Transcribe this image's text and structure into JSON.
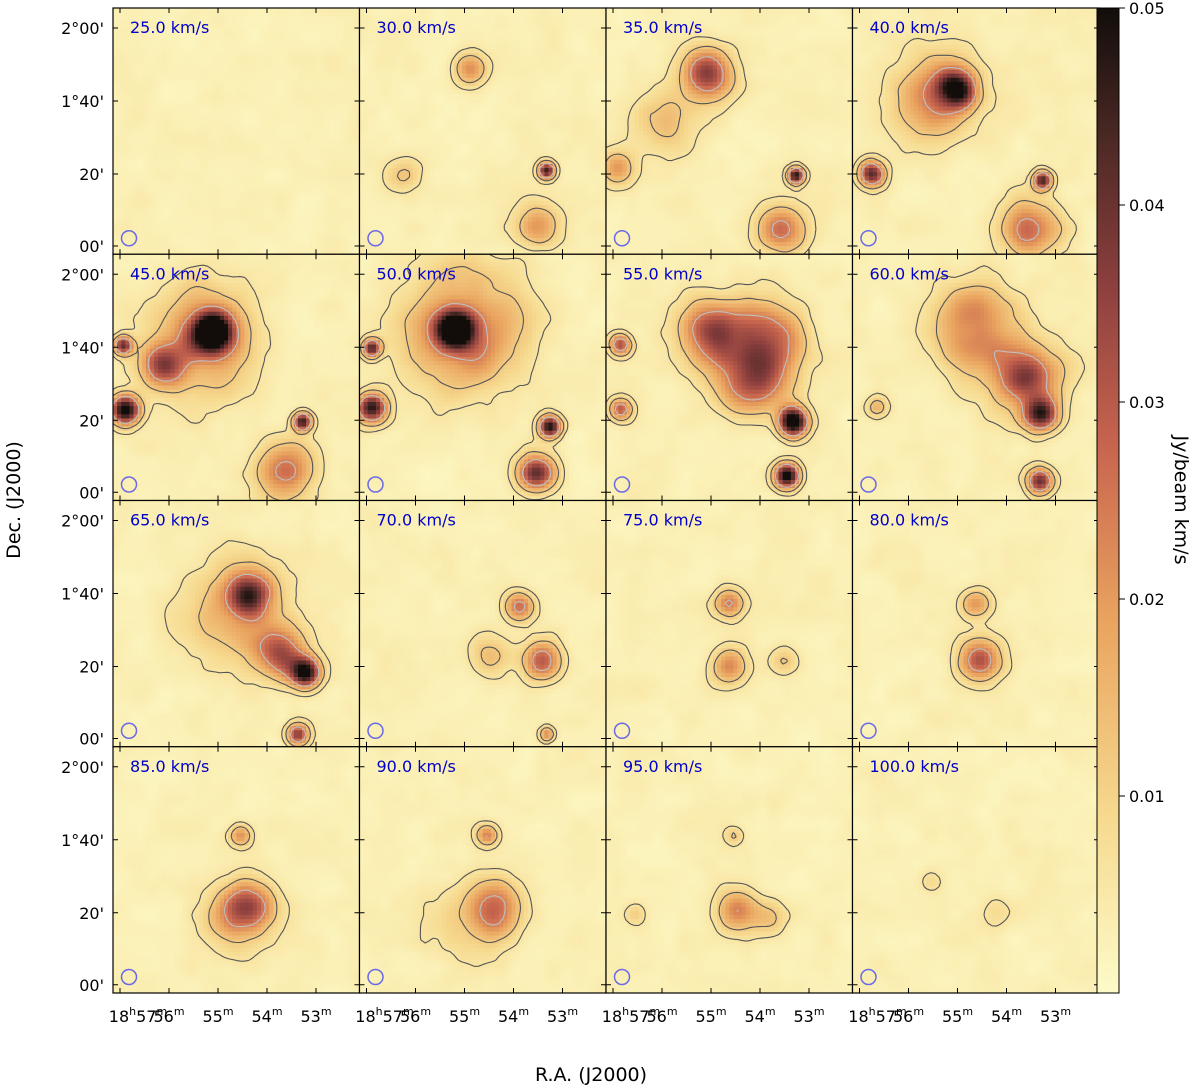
{
  "chart_data": {
    "type": "heatmap",
    "title": "",
    "xlabel": "R.A. (J2000)",
    "ylabel": "Dec. (J2000)",
    "colorbar": {
      "label": "Jy/beam km/s",
      "range": [
        0.0,
        0.05
      ],
      "ticks": [
        "0.01",
        "0.02",
        "0.03",
        "0.04",
        "0.05"
      ],
      "tick_values": [
        0.01,
        0.02,
        0.03,
        0.04,
        0.05
      ],
      "colors": [
        "#fdfbc9",
        "#f6d98e",
        "#e9a35e",
        "#c9664f",
        "#8c3f3e",
        "#4a2824",
        "#120d0a"
      ]
    },
    "grid": {
      "rows": 4,
      "cols": 4
    },
    "y_tick_labels": [
      "2°00'",
      "1°40'",
      "20'",
      "00'"
    ],
    "x_tick_labels": [
      {
        "main": "18",
        "sup": "h",
        "main2": "57",
        "sup2": "m"
      },
      {
        "main": "56",
        "sup": "m"
      },
      {
        "main": "55",
        "sup": "m"
      },
      {
        "main": "54",
        "sup": "m"
      },
      {
        "main": "53",
        "sup": "m"
      }
    ],
    "beam_color": "#6a6ae8",
    "contour_color": "#555555",
    "panels": [
      {
        "label": "25.0 km/s",
        "blobs": []
      },
      {
        "label": "30.0 km/s",
        "blobs": [
          {
            "x": 0.45,
            "y": 0.25,
            "peak": 0.018,
            "sigma": 0.045
          },
          {
            "x": 0.76,
            "y": 0.66,
            "peak": 0.045,
            "sigma": 0.022
          },
          {
            "x": 0.72,
            "y": 0.88,
            "peak": 0.018,
            "sigma": 0.06
          },
          {
            "x": 0.18,
            "y": 0.68,
            "peak": 0.01,
            "sigma": 0.05
          }
        ]
      },
      {
        "label": "35.0 km/s",
        "blobs": [
          {
            "x": 0.41,
            "y": 0.27,
            "peak": 0.028,
            "sigma": 0.07
          },
          {
            "x": 0.77,
            "y": 0.68,
            "peak": 0.05,
            "sigma": 0.022
          },
          {
            "x": 0.72,
            "y": 0.9,
            "peak": 0.022,
            "sigma": 0.07
          },
          {
            "x": 0.04,
            "y": 0.65,
            "peak": 0.015,
            "sigma": 0.05
          },
          {
            "x": 0.25,
            "y": 0.45,
            "peak": 0.01,
            "sigma": 0.09
          }
        ]
      },
      {
        "label": "40.0 km/s",
        "blobs": [
          {
            "x": 0.42,
            "y": 0.33,
            "peak": 0.045,
            "sigma": 0.05
          },
          {
            "x": 0.35,
            "y": 0.35,
            "peak": 0.02,
            "sigma": 0.12
          },
          {
            "x": 0.08,
            "y": 0.67,
            "peak": 0.04,
            "sigma": 0.035
          },
          {
            "x": 0.77,
            "y": 0.7,
            "peak": 0.05,
            "sigma": 0.025
          },
          {
            "x": 0.73,
            "y": 0.9,
            "peak": 0.025,
            "sigma": 0.08
          }
        ]
      },
      {
        "label": "45.0 km/s",
        "blobs": [
          {
            "x": 0.41,
            "y": 0.31,
            "peak": 0.05,
            "sigma": 0.05
          },
          {
            "x": 0.35,
            "y": 0.35,
            "peak": 0.025,
            "sigma": 0.14
          },
          {
            "x": 0.05,
            "y": 0.63,
            "peak": 0.05,
            "sigma": 0.04
          },
          {
            "x": 0.04,
            "y": 0.37,
            "peak": 0.04,
            "sigma": 0.025
          },
          {
            "x": 0.77,
            "y": 0.68,
            "peak": 0.05,
            "sigma": 0.025
          },
          {
            "x": 0.7,
            "y": 0.88,
            "peak": 0.025,
            "sigma": 0.08
          },
          {
            "x": 0.2,
            "y": 0.45,
            "peak": 0.02,
            "sigma": 0.06
          }
        ]
      },
      {
        "label": "50.0 km/s",
        "blobs": [
          {
            "x": 0.39,
            "y": 0.31,
            "peak": 0.05,
            "sigma": 0.05
          },
          {
            "x": 0.42,
            "y": 0.3,
            "peak": 0.025,
            "sigma": 0.16
          },
          {
            "x": 0.05,
            "y": 0.63,
            "peak": 0.05,
            "sigma": 0.04
          },
          {
            "x": 0.05,
            "y": 0.38,
            "peak": 0.04,
            "sigma": 0.025
          },
          {
            "x": 0.77,
            "y": 0.7,
            "peak": 0.05,
            "sigma": 0.03
          },
          {
            "x": 0.72,
            "y": 0.88,
            "peak": 0.035,
            "sigma": 0.05
          }
        ]
      },
      {
        "label": "55.0 km/s",
        "blobs": [
          {
            "x": 0.43,
            "y": 0.33,
            "peak": 0.03,
            "sigma": 0.09
          },
          {
            "x": 0.65,
            "y": 0.35,
            "peak": 0.03,
            "sigma": 0.1
          },
          {
            "x": 0.6,
            "y": 0.52,
            "peak": 0.03,
            "sigma": 0.09
          },
          {
            "x": 0.76,
            "y": 0.68,
            "peak": 0.05,
            "sigma": 0.04
          },
          {
            "x": 0.73,
            "y": 0.9,
            "peak": 0.05,
            "sigma": 0.035
          },
          {
            "x": 0.06,
            "y": 0.37,
            "peak": 0.03,
            "sigma": 0.03
          },
          {
            "x": 0.06,
            "y": 0.63,
            "peak": 0.025,
            "sigma": 0.03
          }
        ]
      },
      {
        "label": "60.0 km/s",
        "blobs": [
          {
            "x": 0.5,
            "y": 0.3,
            "peak": 0.025,
            "sigma": 0.11
          },
          {
            "x": 0.7,
            "y": 0.5,
            "peak": 0.03,
            "sigma": 0.1
          },
          {
            "x": 0.76,
            "y": 0.65,
            "peak": 0.05,
            "sigma": 0.045
          },
          {
            "x": 0.76,
            "y": 0.92,
            "peak": 0.045,
            "sigma": 0.035
          },
          {
            "x": 0.1,
            "y": 0.62,
            "peak": 0.015,
            "sigma": 0.03
          }
        ]
      },
      {
        "label": "65.0 km/s",
        "blobs": [
          {
            "x": 0.55,
            "y": 0.38,
            "peak": 0.03,
            "sigma": 0.06
          },
          {
            "x": 0.78,
            "y": 0.7,
            "peak": 0.05,
            "sigma": 0.04
          },
          {
            "x": 0.68,
            "y": 0.62,
            "peak": 0.03,
            "sigma": 0.07
          },
          {
            "x": 0.5,
            "y": 0.45,
            "peak": 0.015,
            "sigma": 0.14
          },
          {
            "x": 0.75,
            "y": 0.95,
            "peak": 0.03,
            "sigma": 0.03
          }
        ]
      },
      {
        "label": "70.0 km/s",
        "blobs": [
          {
            "x": 0.65,
            "y": 0.43,
            "peak": 0.025,
            "sigma": 0.04
          },
          {
            "x": 0.74,
            "y": 0.65,
            "peak": 0.035,
            "sigma": 0.05
          },
          {
            "x": 0.53,
            "y": 0.63,
            "peak": 0.012,
            "sigma": 0.06
          },
          {
            "x": 0.76,
            "y": 0.95,
            "peak": 0.02,
            "sigma": 0.02
          }
        ]
      },
      {
        "label": "75.0 km/s",
        "blobs": [
          {
            "x": 0.5,
            "y": 0.42,
            "peak": 0.02,
            "sigma": 0.04
          },
          {
            "x": 0.5,
            "y": 0.67,
            "peak": 0.02,
            "sigma": 0.05
          },
          {
            "x": 0.72,
            "y": 0.65,
            "peak": 0.01,
            "sigma": 0.04
          }
        ]
      },
      {
        "label": "80.0 km/s",
        "blobs": [
          {
            "x": 0.5,
            "y": 0.42,
            "peak": 0.022,
            "sigma": 0.04
          },
          {
            "x": 0.52,
            "y": 0.65,
            "peak": 0.025,
            "sigma": 0.06
          }
        ]
      },
      {
        "label": "85.0 km/s",
        "blobs": [
          {
            "x": 0.52,
            "y": 0.36,
            "peak": 0.02,
            "sigma": 0.03
          },
          {
            "x": 0.55,
            "y": 0.65,
            "peak": 0.025,
            "sigma": 0.07
          },
          {
            "x": 0.48,
            "y": 0.7,
            "peak": 0.01,
            "sigma": 0.1
          }
        ]
      },
      {
        "label": "90.0 km/s",
        "blobs": [
          {
            "x": 0.52,
            "y": 0.36,
            "peak": 0.02,
            "sigma": 0.03
          },
          {
            "x": 0.55,
            "y": 0.65,
            "peak": 0.025,
            "sigma": 0.07
          },
          {
            "x": 0.45,
            "y": 0.72,
            "peak": 0.008,
            "sigma": 0.12
          }
        ]
      },
      {
        "label": "95.0 km/s",
        "blobs": [
          {
            "x": 0.52,
            "y": 0.36,
            "peak": 0.012,
            "sigma": 0.025
          },
          {
            "x": 0.53,
            "y": 0.67,
            "peak": 0.018,
            "sigma": 0.06
          },
          {
            "x": 0.66,
            "y": 0.7,
            "peak": 0.01,
            "sigma": 0.05
          },
          {
            "x": 0.12,
            "y": 0.68,
            "peak": 0.008,
            "sigma": 0.03
          }
        ]
      },
      {
        "label": "100.0 km/s",
        "blobs": [
          {
            "x": 0.58,
            "y": 0.68,
            "peak": 0.006,
            "sigma": 0.04
          },
          {
            "x": 0.32,
            "y": 0.55,
            "peak": 0.006,
            "sigma": 0.03
          }
        ]
      }
    ]
  }
}
